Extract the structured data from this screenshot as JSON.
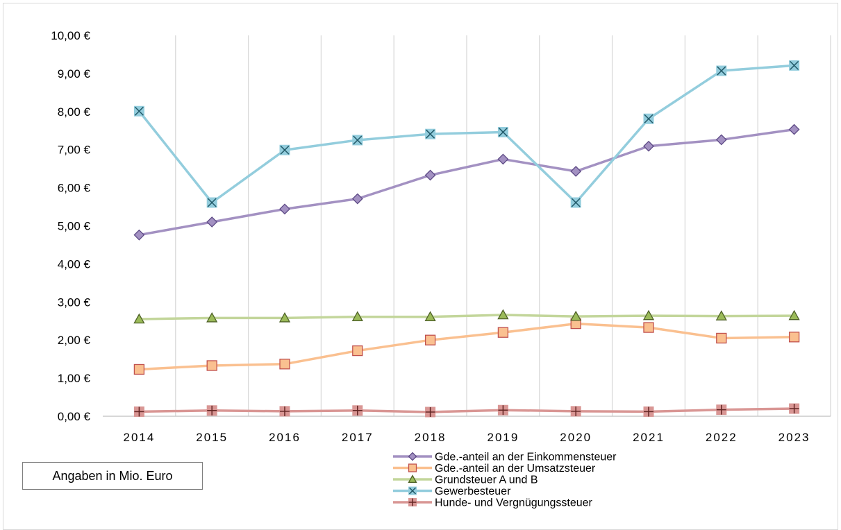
{
  "chart_data": {
    "type": "line",
    "title": "",
    "xlabel": "",
    "ylabel": "",
    "x": [
      "2014",
      "2015",
      "2016",
      "2017",
      "2018",
      "2019",
      "2020",
      "2021",
      "2022",
      "2023"
    ],
    "y_ticks": [
      "0,00 €",
      "1,00 €",
      "2,00 €",
      "3,00 €",
      "4,00 €",
      "5,00 €",
      "6,00 €",
      "7,00 €",
      "8,00 €",
      "9,00 €",
      "10,00 €"
    ],
    "ylim": [
      0,
      10
    ],
    "grid": "vertical",
    "legend": "bottom",
    "series": [
      {
        "name": "Gde.-anteil an der Einkommensteuer",
        "color": "#a391c2",
        "marker": "diamond",
        "marker_fill": "#a391c2",
        "marker_stroke": "#5e4b86",
        "values": [
          4.76,
          5.1,
          5.44,
          5.71,
          6.33,
          6.75,
          6.43,
          7.09,
          7.26,
          7.53
        ]
      },
      {
        "name": "Gde.-anteil an der Umsatzsteuer",
        "color": "#fac090",
        "marker": "square",
        "marker_fill": "#fac090",
        "marker_stroke": "#c0504d",
        "values": [
          1.23,
          1.33,
          1.37,
          1.72,
          2.0,
          2.2,
          2.43,
          2.33,
          2.05,
          2.08
        ]
      },
      {
        "name": "Grundsteuer A und B",
        "color": "#c3d69b",
        "marker": "triangle",
        "marker_fill": "#9bbb59",
        "marker_stroke": "#4f6228",
        "values": [
          2.55,
          2.58,
          2.58,
          2.61,
          2.61,
          2.66,
          2.62,
          2.64,
          2.63,
          2.64
        ]
      },
      {
        "name": "Gewerbesteuer",
        "color": "#93cddd",
        "marker": "x-square",
        "marker_fill": "#93cddd",
        "marker_stroke": "#215968",
        "values": [
          8.01,
          5.61,
          6.99,
          7.25,
          7.41,
          7.46,
          5.61,
          7.81,
          9.07,
          9.21
        ]
      },
      {
        "name": "Hunde- und Vergnügungssteuer",
        "color": "#d99694",
        "marker": "plus-square",
        "marker_fill": "#d99694",
        "marker_stroke": "#632523",
        "values": [
          0.12,
          0.15,
          0.13,
          0.15,
          0.11,
          0.16,
          0.13,
          0.12,
          0.17,
          0.2
        ]
      }
    ]
  },
  "note": {
    "text": "Angaben in Mio. Euro"
  }
}
